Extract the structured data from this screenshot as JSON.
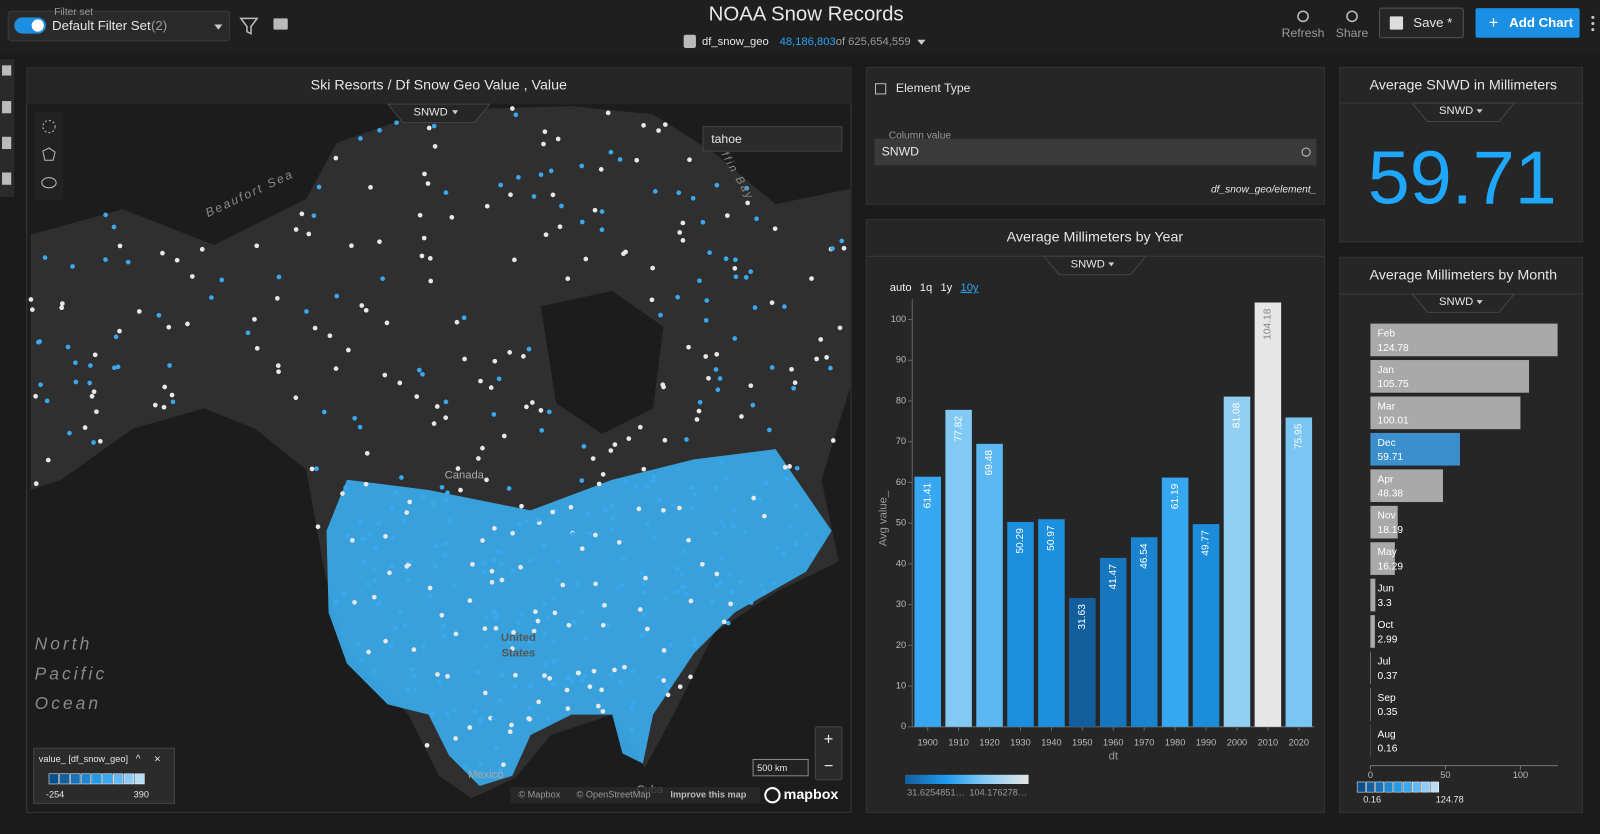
{
  "header": {
    "filter_set_label": "Filter set",
    "filter_set_name": "Default Filter Set",
    "filter_set_count": "(2)",
    "title": "NOAA Snow Records",
    "dataset": "df_snow_geo",
    "filtered_count": "48,186,803",
    "total_count": "of 625,654,559",
    "refresh": "Refresh",
    "share": "Share",
    "save": "Save *",
    "add_chart": "Add Chart"
  },
  "map": {
    "title": "Ski Resorts / Df Snow Geo Value , Value",
    "selector": "SNWD",
    "search": "tahoe",
    "labels": {
      "beaufort": "Beaufort Sea",
      "baffin": "Baffin Bay",
      "canada": "Canada",
      "us": [
        "United",
        "States"
      ],
      "pacific": [
        "North",
        "Pacific",
        "Ocean"
      ],
      "mexico": "Mexico",
      "cuba": "Cuba"
    },
    "scale": "500 km",
    "attribution": [
      "© Mapbox",
      "© OpenStreetMap",
      "Improve this map"
    ],
    "logo": "mapbox",
    "legend": {
      "title": "value_ [df_snow_geo]",
      "min": "-254",
      "max": "390"
    }
  },
  "element_type": {
    "title": "Element Type",
    "field_label": "Column value",
    "value": "SNWD",
    "source": "df_snow_geo/element_"
  },
  "year_chart": {
    "type": "bar",
    "title": "Average Millimeters by Year",
    "selector": "SNWD",
    "intervals": [
      "auto",
      "1q",
      "1y",
      "10y"
    ],
    "active_interval": "10y",
    "y_label": "Avg value_",
    "x_label": "dt",
    "categories": [
      "1900",
      "1910",
      "1920",
      "1930",
      "1940",
      "1950",
      "1960",
      "1970",
      "1980",
      "1990",
      "2000",
      "2010",
      "2020"
    ],
    "values": [
      61.41,
      77.82,
      69.48,
      50.29,
      50.97,
      31.63,
      41.47,
      46.54,
      61.19,
      49.77,
      81.08,
      104.18,
      75.95
    ],
    "ylim": [
      0,
      105
    ],
    "yticks": [
      0,
      10,
      20,
      30,
      40,
      50,
      60,
      70,
      80,
      90,
      100
    ],
    "color_scale": [
      "#135e9c",
      "#1e9cf0",
      "#8ccdf3",
      "#e6e6e6"
    ],
    "legend": {
      "min": "31.6254851…",
      "max": "104.176278…"
    }
  },
  "kpi": {
    "title": "Average SNWD in Millimeters",
    "selector": "SNWD",
    "value": 59.71
  },
  "month_chart": {
    "type": "hbar",
    "title": "Average Millimeters by Month",
    "selector": "SNWD",
    "categories": [
      "Feb",
      "Jan",
      "Mar",
      "Dec",
      "Apr",
      "Nov",
      "May",
      "Jun",
      "Oct",
      "Jul",
      "Sep",
      "Aug"
    ],
    "values": [
      124.78,
      105.75,
      100.01,
      59.71,
      48.38,
      18.19,
      16.29,
      3.3,
      2.99,
      0.37,
      0.35,
      0.16
    ],
    "colors": [
      "#a9a9a9",
      "#a9a9a9",
      "#a9a9a9",
      "#3b8fcc",
      "#a9a9a9",
      "#a9a9a9",
      "#a9a9a9",
      "#a9a9a9",
      "#a9a9a9",
      "#a9a9a9",
      "#a9a9a9",
      "#a9a9a9"
    ],
    "xlim": [
      0,
      125
    ],
    "xticks": [
      0,
      50,
      100
    ],
    "legend": {
      "min": "0.16",
      "max": "124.78"
    }
  }
}
